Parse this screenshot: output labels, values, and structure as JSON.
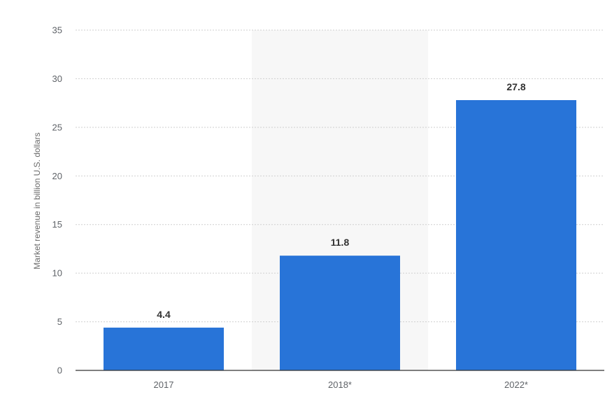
{
  "chart_data": {
    "type": "bar",
    "ylabel": "Market revenue in billion U.S. dollars",
    "xlabel": "",
    "categories": [
      "2017",
      "2018*",
      "2022*"
    ],
    "values": [
      4.4,
      11.8,
      27.8
    ],
    "data_labels": [
      "4.4",
      "11.8",
      "27.8"
    ],
    "ylim": [
      0,
      35
    ],
    "y_ticks": [
      "0",
      "5",
      "10",
      "15",
      "20",
      "25",
      "30",
      "35"
    ],
    "grid": true,
    "highlighted_category": "2018*",
    "colors": {
      "bar": "#2874d8",
      "highlight_band": "#f7f7f7",
      "grid": "#cfcfcf",
      "axis": "#333333"
    }
  }
}
